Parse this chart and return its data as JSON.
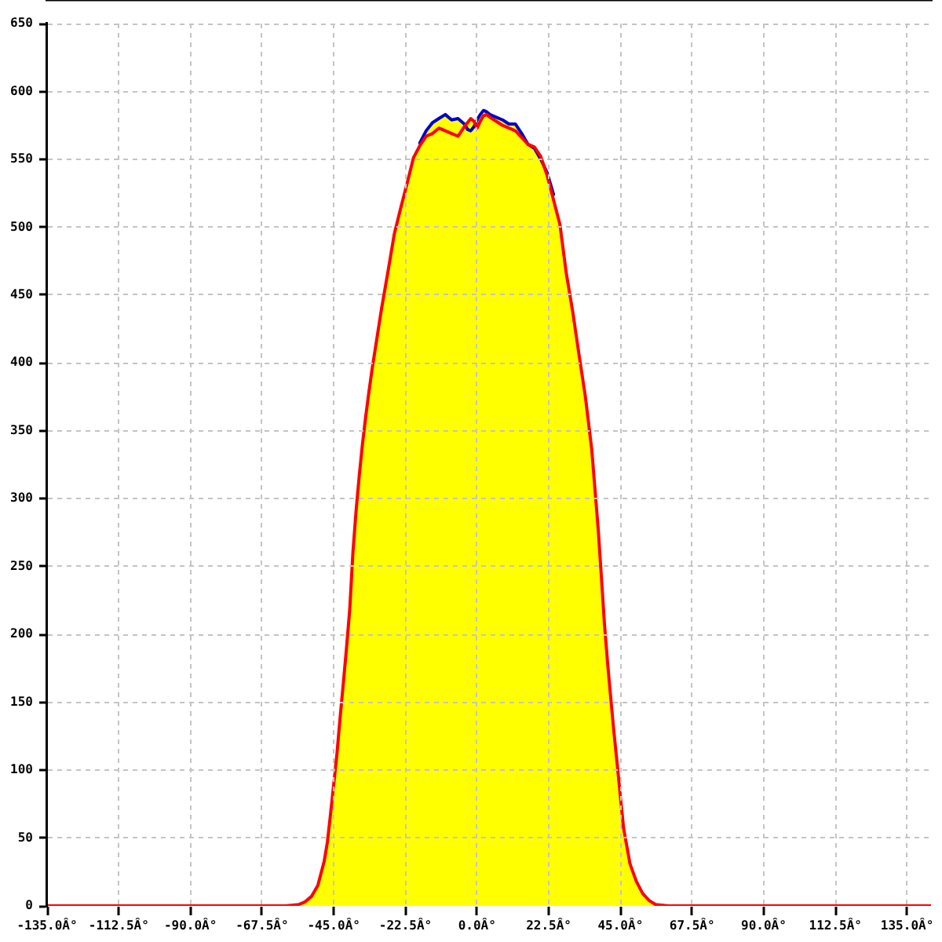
{
  "chart_data": {
    "type": "line",
    "x": [
      -135,
      -60,
      -56,
      -54,
      -52,
      -50,
      -48,
      -47,
      -46,
      -45,
      -44,
      -43,
      -42,
      -41,
      -40,
      -39,
      -38,
      -37,
      -36,
      -35,
      -34,
      -33,
      -32,
      -30,
      -28,
      -26,
      -24,
      -22,
      -20,
      -18,
      -16,
      -14,
      -12,
      -10,
      -8,
      -6,
      -4,
      -3,
      -2,
      -1,
      0,
      1,
      2,
      3,
      4,
      6,
      8,
      10,
      12,
      14,
      16,
      18,
      20,
      22,
      24,
      26,
      28,
      30,
      32,
      34,
      36,
      38,
      39,
      40,
      41,
      42,
      43,
      44,
      45,
      46,
      48,
      50,
      52,
      54,
      56,
      60,
      142.5
    ],
    "series": [
      {
        "type": "area",
        "color": "#ffff00",
        "values": [
          0,
          0,
          1,
          3,
          7,
          15,
          33,
          47,
          68,
          90,
          112,
          139,
          164,
          190,
          218,
          260,
          291,
          317,
          340,
          360,
          378,
          395,
          410,
          440,
          467,
          495,
          514,
          532,
          551,
          562,
          571,
          577,
          580,
          583,
          579,
          580,
          576,
          577,
          580,
          578,
          579,
          583,
          586,
          585,
          583,
          581,
          579,
          576,
          576,
          569,
          561,
          559,
          552,
          540,
          524,
          502,
          466,
          438,
          406,
          375,
          336,
          278,
          243,
          207,
          178,
          152,
          127,
          104,
          80,
          57,
          31,
          18,
          9,
          4,
          1,
          0,
          0
        ]
      },
      {
        "color": "#0000cc",
        "values": [
          null,
          null,
          null,
          null,
          null,
          null,
          null,
          null,
          null,
          null,
          null,
          null,
          null,
          null,
          null,
          null,
          null,
          null,
          null,
          null,
          null,
          null,
          null,
          null,
          null,
          null,
          null,
          null,
          null,
          562,
          571,
          577,
          580,
          583,
          579,
          580,
          576,
          572,
          571,
          574,
          579,
          583,
          586,
          585,
          583,
          581,
          579,
          576,
          576,
          569,
          561,
          558,
          550,
          540,
          524,
          null,
          null,
          null,
          null,
          null,
          null,
          null,
          null,
          null,
          null,
          null,
          null,
          null,
          null,
          null,
          null,
          null,
          null,
          null,
          null,
          null,
          null
        ]
      },
      {
        "color": "#ff0000",
        "values": [
          0,
          0,
          1,
          3,
          7,
          15,
          33,
          47,
          68,
          90,
          112,
          139,
          164,
          190,
          218,
          260,
          291,
          317,
          340,
          360,
          378,
          395,
          410,
          440,
          467,
          495,
          514,
          532,
          551,
          560,
          567,
          569,
          573,
          571,
          569,
          567,
          574,
          577,
          580,
          578,
          573,
          578,
          582,
          583,
          581,
          578,
          575,
          573,
          571,
          566,
          561,
          559,
          552,
          538,
          520,
          502,
          466,
          438,
          406,
          375,
          336,
          278,
          243,
          207,
          178,
          152,
          127,
          104,
          80,
          57,
          31,
          18,
          9,
          4,
          1,
          0,
          0
        ]
      }
    ],
    "xlim": [
      -135,
      142.5
    ],
    "ylim": [
      0,
      650
    ],
    "xticks": [
      {
        "value": -135,
        "label": "-135.0Â°"
      },
      {
        "value": -112.5,
        "label": "-112.5Â°"
      },
      {
        "value": -90,
        "label": "-90.0Â°"
      },
      {
        "value": -67.5,
        "label": "-67.5Â°"
      },
      {
        "value": -45,
        "label": "-45.0Â°"
      },
      {
        "value": -22.5,
        "label": "-22.5Â°"
      },
      {
        "value": 0,
        "label": "0.0Â°"
      },
      {
        "value": 22.5,
        "label": "22.5Â°"
      },
      {
        "value": 45,
        "label": "45.0Â°"
      },
      {
        "value": 67.5,
        "label": "67.5Â°"
      },
      {
        "value": 90,
        "label": "90.0Â°"
      },
      {
        "value": 112.5,
        "label": "112.5Â°"
      },
      {
        "value": 135,
        "label": "135.0Â°"
      }
    ],
    "yticks": [
      0,
      50,
      100,
      150,
      200,
      250,
      300,
      350,
      400,
      450,
      500,
      550,
      600,
      650
    ],
    "grid": true
  }
}
